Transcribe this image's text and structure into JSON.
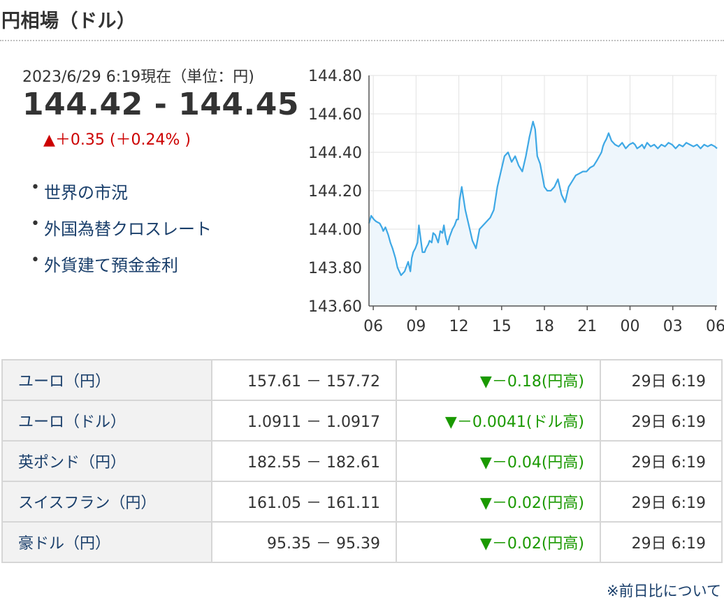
{
  "header": {
    "title": "円相場（ドル）"
  },
  "quote": {
    "timestamp": "2023/6/29 6:19現在（単位：円)",
    "range": "144.42 - 144.45",
    "change": "▲＋0.35 (＋0.24% )"
  },
  "links": [
    {
      "label": "世界の市況"
    },
    {
      "label": "外国為替クロスレート"
    },
    {
      "label": "外貨建て預金金利"
    }
  ],
  "chart_data": {
    "type": "area",
    "title": "",
    "xlabel": "",
    "ylabel": "",
    "ylim": [
      143.6,
      144.8
    ],
    "yticks": [
      "144.80",
      "144.60",
      "144.40",
      "144.20",
      "144.00",
      "143.80",
      "143.60"
    ],
    "xticks": [
      "06",
      "09",
      "12",
      "15",
      "18",
      "21",
      "00",
      "03",
      "06"
    ],
    "grid": true,
    "line_color": "#3ea8e5",
    "fill_color": "#eef6fc",
    "series": [
      {
        "x": [
          0,
          0.3,
          0.7,
          1.0,
          1.5,
          1.8,
          2.0,
          2.3,
          2.7,
          3.0,
          3.3,
          3.7,
          4.0,
          4.5,
          5.0,
          5.5,
          5.8,
          6.0,
          6.2,
          6.5,
          6.8,
          7.0,
          7.5,
          7.8,
          8.0,
          8.3,
          8.5,
          8.8,
          9.0,
          9.3,
          9.7,
          10.0,
          10.3,
          10.5,
          10.7,
          11.0,
          11.3,
          11.7,
          12.0,
          12.3,
          12.5,
          12.7,
          13.0,
          13.5,
          14.0,
          14.5,
          15.0,
          15.5,
          16.0,
          16.5,
          17.0,
          17.5,
          18.0,
          18.5,
          19.0,
          19.5,
          20.0,
          20.5,
          21.0,
          21.5,
          22.0,
          22.5,
          23.0,
          23.3,
          23.6,
          24.0,
          24.3,
          24.6,
          25.0,
          25.5,
          26.0,
          26.5,
          27.0,
          27.5,
          28.0,
          28.5,
          29.0,
          29.5,
          30.0,
          30.5,
          31.0,
          31.5,
          32.0,
          32.3,
          32.6,
          32.8,
          33.0,
          33.3,
          33.6,
          34.0,
          34.5,
          35.0,
          35.5,
          36.0,
          36.5,
          37.0,
          37.3,
          37.6,
          38.0,
          38.3,
          38.6,
          39.0,
          39.5,
          40.0,
          40.5,
          41.0,
          41.5,
          42.0,
          42.5,
          43.0,
          43.5,
          44.0,
          44.5,
          45.0,
          45.5,
          46.0,
          46.5,
          47.0,
          47.5,
          48.0,
          48.5,
          48.8
        ],
        "values": [
          144.03,
          144.07,
          144.05,
          144.04,
          144.03,
          144.01,
          143.99,
          144.01,
          143.97,
          143.93,
          143.9,
          143.85,
          143.8,
          143.76,
          143.78,
          143.83,
          143.78,
          143.85,
          143.88,
          143.9,
          143.93,
          144.02,
          143.88,
          143.88,
          143.9,
          143.92,
          143.94,
          143.93,
          143.98,
          143.97,
          143.93,
          143.99,
          143.98,
          144.02,
          143.97,
          143.92,
          143.96,
          144.0,
          144.02,
          144.05,
          144.05,
          144.15,
          144.22,
          144.1,
          144.02,
          143.94,
          143.9,
          144.0,
          144.02,
          144.04,
          144.06,
          144.1,
          144.22,
          144.3,
          144.38,
          144.4,
          144.35,
          144.38,
          144.33,
          144.3,
          144.38,
          144.48,
          144.56,
          144.52,
          144.38,
          144.34,
          144.28,
          144.22,
          144.2,
          144.2,
          144.22,
          144.26,
          144.18,
          144.14,
          144.22,
          144.25,
          144.28,
          144.29,
          144.3,
          144.3,
          144.32,
          144.33,
          144.36,
          144.38,
          144.4,
          144.43,
          144.45,
          144.47,
          144.5,
          144.46,
          144.44,
          144.43,
          144.45,
          144.42,
          144.44,
          144.45,
          144.44,
          144.42,
          144.43,
          144.44,
          144.42,
          144.45,
          144.43,
          144.44,
          144.42,
          144.44,
          144.43,
          144.45,
          144.44,
          144.42,
          144.44,
          144.43,
          144.45,
          144.44,
          144.43,
          144.44,
          144.42,
          144.44,
          144.43,
          144.44,
          144.43,
          144.42
        ]
      }
    ]
  },
  "table": {
    "rows": [
      {
        "name": "ユーロ（円）",
        "rate": "157.61 － 157.72",
        "change": "▼－0.18(円高)",
        "time": "29日 6:19"
      },
      {
        "name": "ユーロ（ドル）",
        "rate": "1.0911 － 1.0917",
        "change": "▼－0.0041(ドル高)",
        "time": "29日 6:19"
      },
      {
        "name": "英ポンド（円）",
        "rate": "182.55 － 182.61",
        "change": "▼－0.04(円高)",
        "time": "29日 6:19"
      },
      {
        "name": "スイスフラン（円）",
        "rate": "161.05 － 161.11",
        "change": "▼－0.02(円高)",
        "time": "29日 6:19"
      },
      {
        "name": "豪ドル（円）",
        "rate": "95.35 － 95.39",
        "change": "▼－0.02(円高)",
        "time": "29日 6:19"
      }
    ]
  },
  "footnote": "※前日比について"
}
